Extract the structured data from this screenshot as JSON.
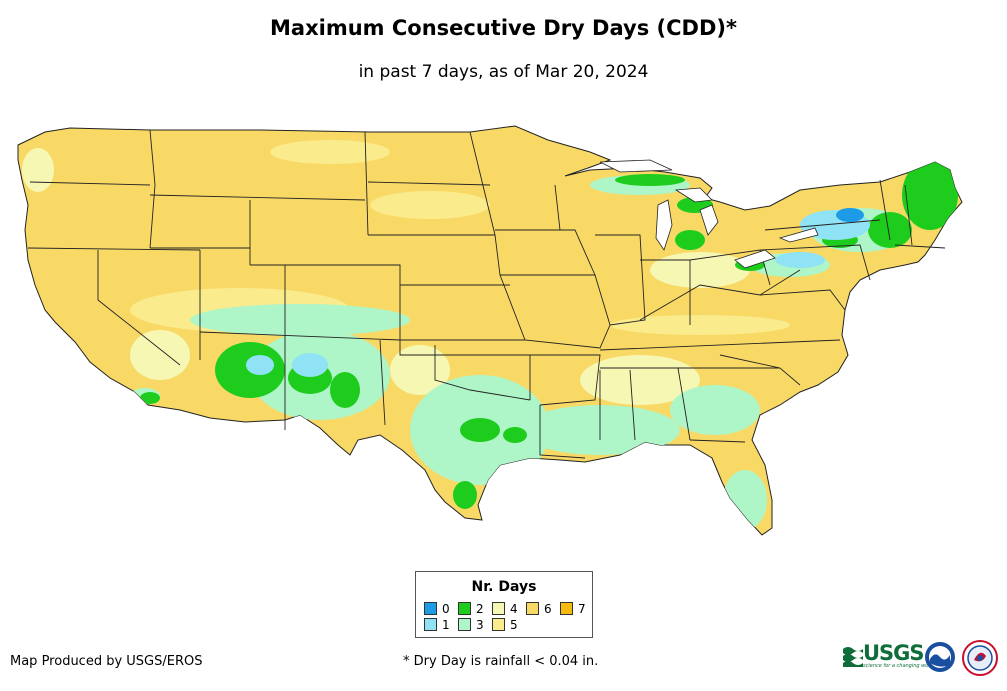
{
  "title": "Maximum Consecutive Dry Days (CDD)*",
  "subtitle": "in past 7 days, as of Mar 20, 2024",
  "legend": {
    "title": "Nr. Days",
    "items": [
      {
        "label": "0",
        "color": "#1e9be6"
      },
      {
        "label": "1",
        "color": "#8fe3f5"
      },
      {
        "label": "2",
        "color": "#1ecc1e"
      },
      {
        "label": "3",
        "color": "#aef5c8"
      },
      {
        "label": "4",
        "color": "#f7f7b4"
      },
      {
        "label": "5",
        "color": "#faeb8c"
      },
      {
        "label": "6",
        "color": "#f9d966"
      },
      {
        "label": "7",
        "color": "#f5b90f"
      }
    ]
  },
  "footer": {
    "producer": "Map Produced by USGS/EROS",
    "note": "* Dry Day is rainfall < 0.04 in."
  },
  "logos": {
    "usgs": "USGS",
    "usgs_tagline": "science for a changing world",
    "noaa": "noaa-logo",
    "nws": "nws-logo"
  },
  "icons": [
    "usgs-logo",
    "noaa-logo",
    "nws-logo"
  ]
}
